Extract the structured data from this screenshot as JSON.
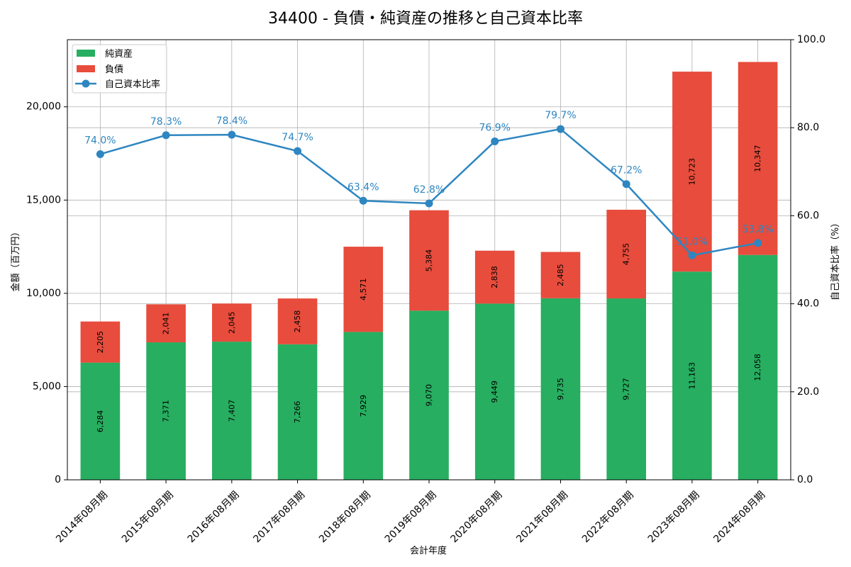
{
  "chart_data": {
    "type": "bar",
    "title": "34400 - 負債・純資産の推移と自己資本比率",
    "xlabel": "会計年度",
    "ylabel": "金額（百万円）",
    "y2label": "自己資本比率（%）",
    "ylim": [
      0,
      23600
    ],
    "y2lim": [
      0,
      100
    ],
    "yticks": [
      "0",
      "5,000",
      "10,000",
      "15,000",
      "20,000"
    ],
    "yticks_values": [
      0,
      5000,
      10000,
      15000,
      20000
    ],
    "y2ticks": [
      "0.0",
      "20.0",
      "40.0",
      "60.0",
      "80.0",
      "100.0"
    ],
    "y2ticks_values": [
      0,
      20,
      40,
      60,
      80,
      100
    ],
    "categories": [
      "2014年08月期",
      "2015年08月期",
      "2016年08月期",
      "2017年08月期",
      "2018年08月期",
      "2019年08月期",
      "2020年08月期",
      "2021年08月期",
      "2022年08月期",
      "2023年08月期",
      "2024年08月期"
    ],
    "series": [
      {
        "name": "純資産",
        "type": "bar",
        "stack": true,
        "color": "#27ae60",
        "values": [
          6284,
          7371,
          7407,
          7266,
          7929,
          9070,
          9449,
          9735,
          9727,
          11163,
          12058
        ],
        "labels": [
          "6,284",
          "7,371",
          "7,407",
          "7,266",
          "7,929",
          "9,070",
          "9,449",
          "9,735",
          "9,727",
          "11,163",
          "12,058"
        ]
      },
      {
        "name": "負債",
        "type": "bar",
        "stack": true,
        "color": "#e74c3c",
        "values": [
          2205,
          2041,
          2045,
          2458,
          4571,
          5384,
          2838,
          2485,
          4755,
          10723,
          10347
        ],
        "labels": [
          "2,205",
          "2,041",
          "2,045",
          "2,458",
          "4,571",
          "5,384",
          "2,838",
          "2,485",
          "4,755",
          "10,723",
          "10,347"
        ]
      },
      {
        "name": "自己資本比率",
        "type": "line",
        "axis": "right",
        "color": "#2e86c1",
        "values": [
          74.0,
          78.3,
          78.4,
          74.7,
          63.4,
          62.8,
          76.9,
          79.7,
          67.2,
          51.0,
          53.8
        ],
        "labels": [
          "74.0%",
          "78.3%",
          "78.4%",
          "74.7%",
          "63.4%",
          "62.8%",
          "76.9%",
          "79.7%",
          "67.2%",
          "51.0%",
          "53.8%"
        ]
      }
    ],
    "grid": true,
    "legend_position": "top-left"
  }
}
